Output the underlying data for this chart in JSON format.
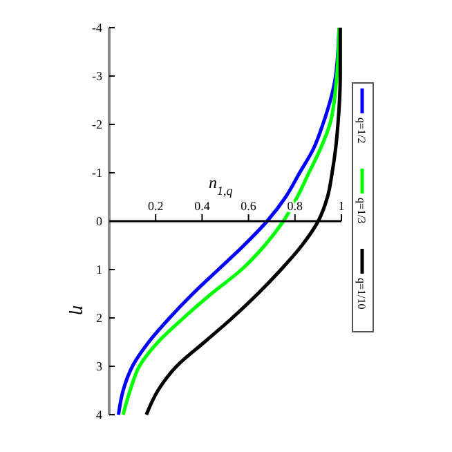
{
  "chart_data": {
    "type": "line",
    "xlabel": "n$_{1,q}$",
    "ylabel": "η",
    "xlim": [
      0,
      1
    ],
    "xticks": [
      0.2,
      0.4,
      0.6,
      0.8,
      1
    ],
    "ylim": [
      4,
      -4
    ],
    "yticks": [
      -4,
      -3,
      -2,
      -1,
      0,
      1,
      2,
      3,
      4
    ],
    "grid": false,
    "legend": "right",
    "line_style": "solid",
    "marker": "none",
    "series": [
      {
        "name": "q=1/2",
        "color": "#0000ff",
        "x": [
          0.99,
          0.975,
          0.92,
          0.88,
          0.82,
          0.76,
          0.68,
          0.58,
          0.47,
          0.36,
          0.26,
          0.17,
          0.1,
          0.06,
          0.04
        ],
        "values": [
          -4,
          -3,
          -2,
          -1.5,
          -1,
          -0.5,
          0,
          0.5,
          1,
          1.5,
          2,
          2.5,
          3,
          3.5,
          4
        ]
      },
      {
        "name": "q=1/3",
        "color": "#00ff00",
        "x": [
          0.99,
          0.98,
          0.95,
          0.91,
          0.86,
          0.81,
          0.75,
          0.67,
          0.57,
          0.44,
          0.32,
          0.21,
          0.13,
          0.09,
          0.06
        ],
        "values": [
          -4,
          -3,
          -2,
          -1.5,
          -1,
          -0.5,
          0,
          0.5,
          1,
          1.5,
          2,
          2.5,
          3,
          3.5,
          4
        ]
      },
      {
        "name": "q=1/10",
        "color": "#000000",
        "x": [
          0.995,
          0.995,
          0.985,
          0.975,
          0.96,
          0.94,
          0.9,
          0.83,
          0.74,
          0.64,
          0.53,
          0.41,
          0.29,
          0.21,
          0.16
        ],
        "values": [
          -4,
          -3,
          -2,
          -1.5,
          -1,
          -0.5,
          0,
          0.5,
          1,
          1.5,
          2,
          2.5,
          3,
          3.5,
          4
        ]
      }
    ]
  }
}
